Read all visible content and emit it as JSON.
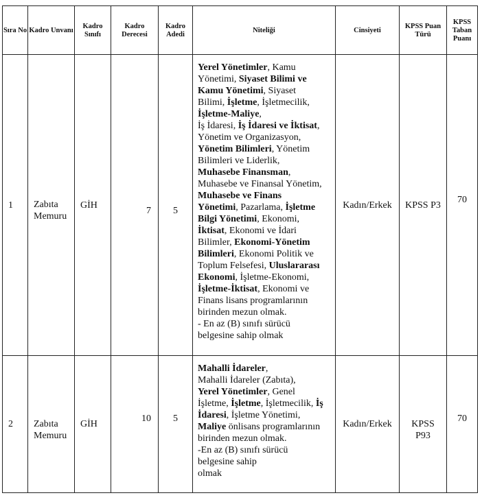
{
  "headers": {
    "sira_no": "Sıra No",
    "kadro_unvani": "Kadro Unvanı",
    "kadro_sinifi": "Kadro Sınıfı",
    "kadro_derecesi": "Kadro Derecesi",
    "kadro_adedi": "Kadro Adedi",
    "niteligi": "Niteliği",
    "cinsiyeti": "Cinsiyeti",
    "kpss_puan_turu": "KPSS Puan Türü",
    "kpss_taban_puani": "KPSS Taban Puanı"
  },
  "rows": [
    {
      "sira_no": "1",
      "kadro_unvani": "Zabıta Memuru",
      "kadro_sinifi": "GİH",
      "kadro_derecesi": "7",
      "kadro_adedi": "5",
      "cinsiyeti": "Kadın/Erkek",
      "kpss_puan_turu": "KPSS P3",
      "kpss_taban_puani": "70",
      "niteligi_lines": [
        [
          {
            "t": "Yerel Yönetimler",
            "b": true
          },
          {
            "t": ", Kamu",
            "b": false
          }
        ],
        [
          {
            "t": "Yönetimi, ",
            "b": false
          },
          {
            "t": "Siyaset Bilimi ve",
            "b": true
          }
        ],
        [
          {
            "t": "Kamu Yönetimi",
            "b": true
          },
          {
            "t": ", Siyaset",
            "b": false
          }
        ],
        [
          {
            "t": "Bilimi, ",
            "b": false
          },
          {
            "t": "İşletme",
            "b": true
          },
          {
            "t": ", İşletmecilik,",
            "b": false
          }
        ],
        [
          {
            "t": "İşletme-Maliye",
            "b": true
          },
          {
            "t": ",",
            "b": false
          }
        ],
        [
          {
            "t": "İş İdaresi, ",
            "b": false
          },
          {
            "t": "İş İdaresi ve İktisat",
            "b": true
          },
          {
            "t": ",",
            "b": false
          }
        ],
        [
          {
            "t": "Yönetim ve Organizasyon,",
            "b": false
          }
        ],
        [
          {
            "t": "Yönetim Bilimleri",
            "b": true
          },
          {
            "t": ", Yönetim",
            "b": false
          }
        ],
        [
          {
            "t": "Bilimleri ve Liderlik,",
            "b": false
          }
        ],
        [
          {
            "t": "Muhasebe Finansman",
            "b": true
          },
          {
            "t": ",",
            "b": false
          }
        ],
        [
          {
            "t": "Muhasebe ve Finansal Yönetim,",
            "b": false
          }
        ],
        [
          {
            "t": "Muhasebe ve Finans",
            "b": true
          }
        ],
        [
          {
            "t": "Yönetimi",
            "b": true
          },
          {
            "t": ", Pazarlama, ",
            "b": false
          },
          {
            "t": "İşletme",
            "b": true
          }
        ],
        [
          {
            "t": "Bilgi Yönetimi",
            "b": true
          },
          {
            "t": ", Ekonomi,",
            "b": false
          }
        ],
        [
          {
            "t": "İktisat",
            "b": true
          },
          {
            "t": ",  Ekonomi ve İdari",
            "b": false
          }
        ],
        [
          {
            "t": "Bilimler, ",
            "b": false
          },
          {
            "t": "Ekonomi-Yönetim",
            "b": true
          }
        ],
        [
          {
            "t": "Bilimleri",
            "b": true
          },
          {
            "t": ", Ekonomi Politik ve",
            "b": false
          }
        ],
        [
          {
            "t": "Toplum Felsefesi, ",
            "b": false
          },
          {
            "t": "Uluslararası",
            "b": true
          }
        ],
        [
          {
            "t": "Ekonomi",
            "b": true
          },
          {
            "t": ", İşletme-Ekonomi,",
            "b": false
          }
        ],
        [
          {
            "t": "İşletme-İktisat",
            "b": true
          },
          {
            "t": ", Ekonomi ve",
            "b": false
          }
        ],
        [
          {
            "t": "Finans lisans programlarının",
            "b": false
          }
        ],
        [
          {
            "t": "birinden mezun olmak.",
            "b": false
          }
        ],
        [
          {
            "t": "- En az (B) sınıfı sürücü",
            "b": false
          }
        ],
        [
          {
            "t": "belgesine sahip olmak",
            "b": false
          }
        ]
      ]
    },
    {
      "sira_no": "2",
      "kadro_unvani": "Zabıta Memuru",
      "kadro_sinifi": "GİH",
      "kadro_derecesi": "10",
      "kadro_adedi": "5",
      "cinsiyeti": "Kadın/Erkek",
      "kpss_puan_turu": "KPSS P93",
      "kpss_taban_puani": "70",
      "niteligi_lines": [
        [
          {
            "t": "Mahalli İdareler",
            "b": true
          },
          {
            "t": ",",
            "b": false
          }
        ],
        [
          {
            "t": "Mahalli İdareler (Zabıta),",
            "b": false
          }
        ],
        [
          {
            "t": "Yerel Yönetimler",
            "b": true
          },
          {
            "t": ", Genel",
            "b": false
          }
        ],
        [
          {
            "t": "İşletme, ",
            "b": false
          },
          {
            "t": "İşletme",
            "b": true
          },
          {
            "t": ", İşletmecilik, ",
            "b": false
          },
          {
            "t": "İş",
            "b": true
          }
        ],
        [
          {
            "t": "İdaresi",
            "b": true
          },
          {
            "t": ", İşletme Yönetimi,",
            "b": false
          }
        ],
        [
          {
            "t": "Maliye",
            "b": true
          },
          {
            "t": " önlisans programlarının",
            "b": false
          }
        ],
        [
          {
            "t": "birinden mezun olmak.",
            "b": false
          }
        ],
        [
          {
            "t": "-En az (B) sınıfı sürücü",
            "b": false
          }
        ],
        [
          {
            "t": "belgesine sahip",
            "b": false
          }
        ],
        [
          {
            "t": "olmak",
            "b": false
          }
        ]
      ]
    }
  ]
}
